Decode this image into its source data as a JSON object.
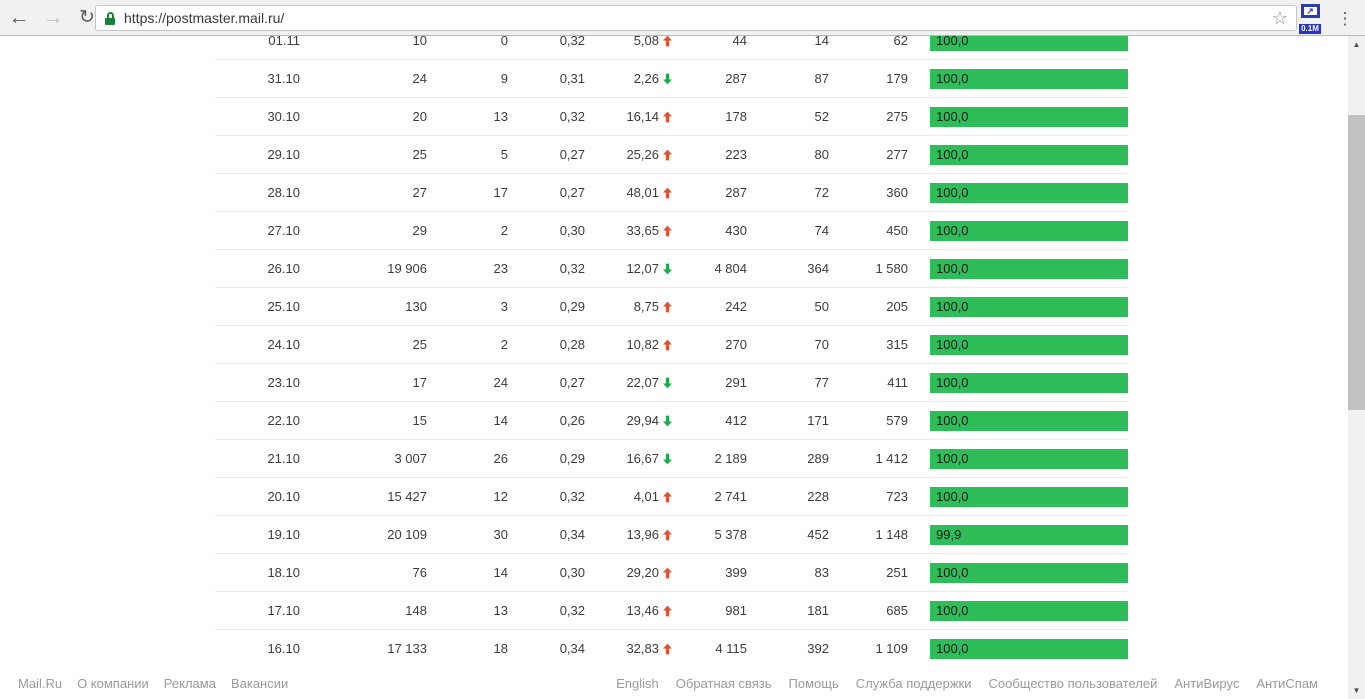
{
  "browser": {
    "url": "https://postmaster.mail.ru/",
    "extension_badge": "0.1M",
    "extension_glyph": "↗"
  },
  "icons": {
    "back": "←",
    "forward": "→",
    "reload": "↻",
    "star": "☆",
    "menu": "⋮",
    "scroll_up": "▲",
    "scroll_down": "▼"
  },
  "colors": {
    "bar_green": "#2ebd59",
    "trend_up": "#e2532d",
    "trend_down": "#23a74e",
    "lock_green": "#188038"
  },
  "table": {
    "rows": [
      {
        "date": "01.11",
        "v1": "10",
        "v2": "0",
        "v3": "0,32",
        "v4": "5,08",
        "trend": "up",
        "v5": "44",
        "v6": "14",
        "v7": "62",
        "bar_label": "100,0",
        "bar_pct": 100
      },
      {
        "date": "31.10",
        "v1": "24",
        "v2": "9",
        "v3": "0,31",
        "v4": "2,26",
        "trend": "down",
        "v5": "287",
        "v6": "87",
        "v7": "179",
        "bar_label": "100,0",
        "bar_pct": 100
      },
      {
        "date": "30.10",
        "v1": "20",
        "v2": "13",
        "v3": "0,32",
        "v4": "16,14",
        "trend": "up",
        "v5": "178",
        "v6": "52",
        "v7": "275",
        "bar_label": "100,0",
        "bar_pct": 100
      },
      {
        "date": "29.10",
        "v1": "25",
        "v2": "5",
        "v3": "0,27",
        "v4": "25,26",
        "trend": "up",
        "v5": "223",
        "v6": "80",
        "v7": "277",
        "bar_label": "100,0",
        "bar_pct": 100
      },
      {
        "date": "28.10",
        "v1": "27",
        "v2": "17",
        "v3": "0,27",
        "v4": "48,01",
        "trend": "up",
        "v5": "287",
        "v6": "72",
        "v7": "360",
        "bar_label": "100,0",
        "bar_pct": 100
      },
      {
        "date": "27.10",
        "v1": "29",
        "v2": "2",
        "v3": "0,30",
        "v4": "33,65",
        "trend": "up",
        "v5": "430",
        "v6": "74",
        "v7": "450",
        "bar_label": "100,0",
        "bar_pct": 100
      },
      {
        "date": "26.10",
        "v1": "19 906",
        "v2": "23",
        "v3": "0,32",
        "v4": "12,07",
        "trend": "down",
        "v5": "4 804",
        "v6": "364",
        "v7": "1 580",
        "bar_label": "100,0",
        "bar_pct": 100
      },
      {
        "date": "25.10",
        "v1": "130",
        "v2": "3",
        "v3": "0,29",
        "v4": "8,75",
        "trend": "up",
        "v5": "242",
        "v6": "50",
        "v7": "205",
        "bar_label": "100,0",
        "bar_pct": 100
      },
      {
        "date": "24.10",
        "v1": "25",
        "v2": "2",
        "v3": "0,28",
        "v4": "10,82",
        "trend": "up",
        "v5": "270",
        "v6": "70",
        "v7": "315",
        "bar_label": "100,0",
        "bar_pct": 100
      },
      {
        "date": "23.10",
        "v1": "17",
        "v2": "24",
        "v3": "0,27",
        "v4": "22,07",
        "trend": "down",
        "v5": "291",
        "v6": "77",
        "v7": "411",
        "bar_label": "100,0",
        "bar_pct": 100
      },
      {
        "date": "22.10",
        "v1": "15",
        "v2": "14",
        "v3": "0,26",
        "v4": "29,94",
        "trend": "down",
        "v5": "412",
        "v6": "171",
        "v7": "579",
        "bar_label": "100,0",
        "bar_pct": 100
      },
      {
        "date": "21.10",
        "v1": "3 007",
        "v2": "26",
        "v3": "0,29",
        "v4": "16,67",
        "trend": "down",
        "v5": "2 189",
        "v6": "289",
        "v7": "1 412",
        "bar_label": "100,0",
        "bar_pct": 100
      },
      {
        "date": "20.10",
        "v1": "15 427",
        "v2": "12",
        "v3": "0,32",
        "v4": "4,01",
        "trend": "up",
        "v5": "2 741",
        "v6": "228",
        "v7": "723",
        "bar_label": "100,0",
        "bar_pct": 100
      },
      {
        "date": "19.10",
        "v1": "20 109",
        "v2": "30",
        "v3": "0,34",
        "v4": "13,96",
        "trend": "up",
        "v5": "5 378",
        "v6": "452",
        "v7": "1 148",
        "bar_label": "99,9",
        "bar_pct": 99.9
      },
      {
        "date": "18.10",
        "v1": "76",
        "v2": "14",
        "v3": "0,30",
        "v4": "29,20",
        "trend": "up",
        "v5": "399",
        "v6": "83",
        "v7": "251",
        "bar_label": "100,0",
        "bar_pct": 100
      },
      {
        "date": "17.10",
        "v1": "148",
        "v2": "13",
        "v3": "0,32",
        "v4": "13,46",
        "trend": "up",
        "v5": "981",
        "v6": "181",
        "v7": "685",
        "bar_label": "100,0",
        "bar_pct": 100
      },
      {
        "date": "16.10",
        "v1": "17 133",
        "v2": "18",
        "v3": "0,34",
        "v4": "32,83",
        "trend": "up",
        "v5": "4 115",
        "v6": "392",
        "v7": "1 109",
        "bar_label": "100,0",
        "bar_pct": 100
      }
    ]
  },
  "footer": {
    "left_links": [
      "Mail.Ru",
      "О компании",
      "Реклама",
      "Вакансии"
    ],
    "right_links": [
      "English",
      "Обратная связь",
      "Помощь",
      "Служба поддержки",
      "Сообщество пользователей",
      "АнтиВирус",
      "АнтиСпам"
    ]
  }
}
